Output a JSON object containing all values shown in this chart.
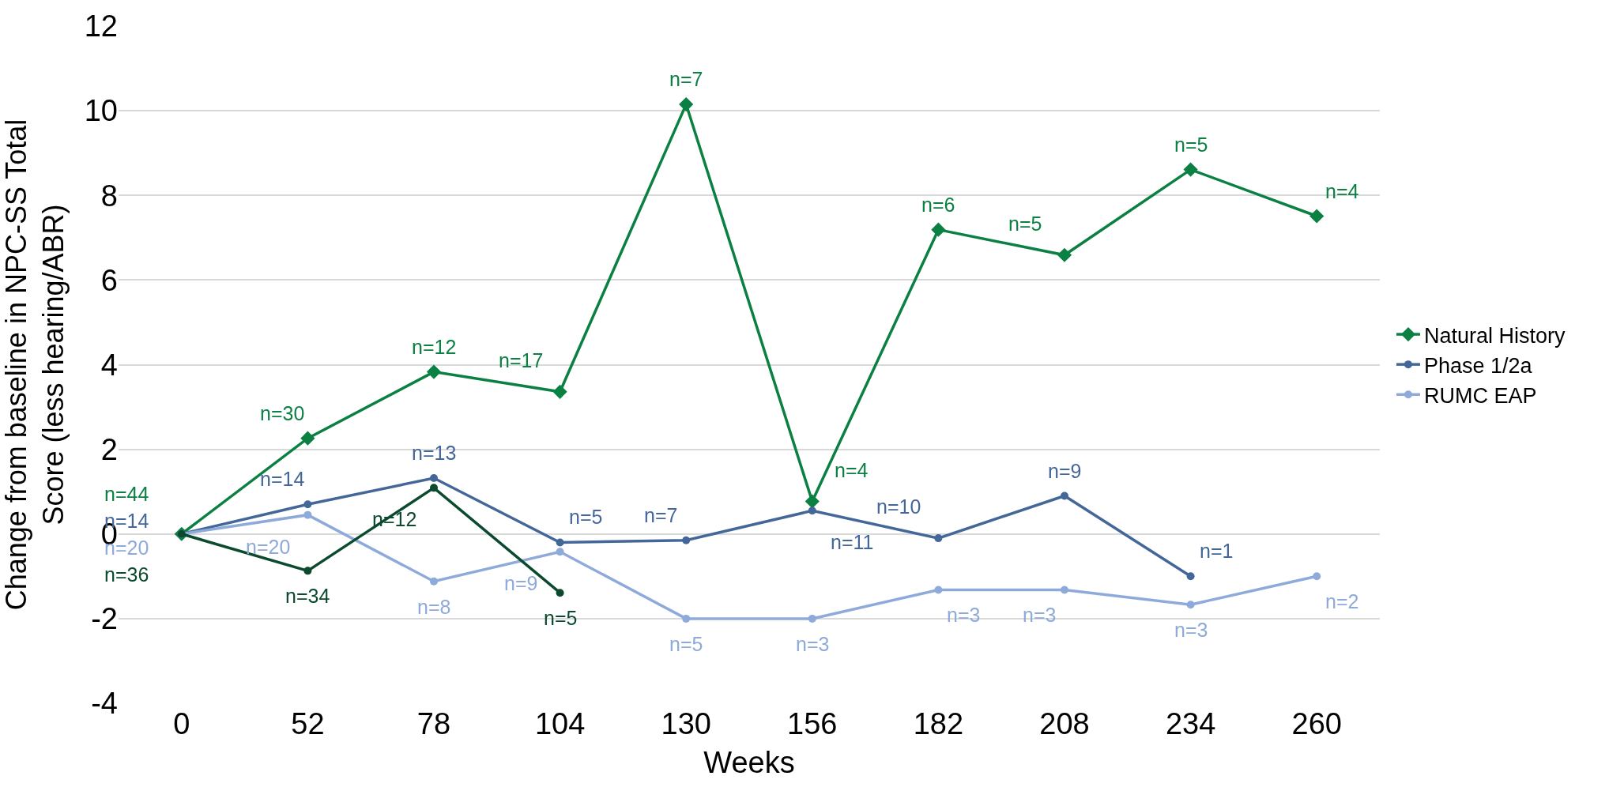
{
  "chart_data": {
    "type": "line",
    "xlabel": "Weeks",
    "ylabel": "Change from baseline in NPC-SS Total\nScore (less hearing/ABR)",
    "categories": [
      "0",
      "52",
      "78",
      "104",
      "130",
      "156",
      "182",
      "208",
      "234",
      "260"
    ],
    "ylim": [
      -4,
      12
    ],
    "yticks": [
      -4,
      -2,
      0,
      2,
      4,
      6,
      8,
      10,
      12
    ],
    "grid": "y",
    "legend": "right",
    "line_style": "solid",
    "series": [
      {
        "name": "Natural History",
        "color": "#0b8043",
        "marker": "diamond",
        "values": [
          0,
          2.26,
          3.83,
          3.36,
          10.15,
          0.77,
          7.19,
          6.59,
          8.61,
          7.51
        ]
      },
      {
        "name": "Phase 1/2a",
        "color": "#44679a",
        "marker": "circle",
        "values": [
          0,
          0.7,
          1.32,
          -0.2,
          -0.15,
          0.55,
          -0.1,
          0.9,
          -1.0,
          null
        ]
      },
      {
        "name": "RUMC EAP",
        "color": "#8eaadb",
        "marker": "circle",
        "values": [
          0,
          0.45,
          -1.12,
          -0.42,
          -2.0,
          -2.0,
          -1.32,
          -1.32,
          -1.67,
          -1.0
        ]
      },
      {
        "color": "#0b4a2e",
        "marker": "circle",
        "values": [
          0,
          -0.87,
          1.09,
          -1.39,
          null,
          null,
          null,
          null,
          null,
          null
        ]
      }
    ],
    "annotations": [
      {
        "text": "n=44",
        "x": "0",
        "y": 0
      },
      {
        "text": "n=14",
        "x": "0",
        "y": 0
      },
      {
        "text": "n=20",
        "x": "0",
        "y": 0
      },
      {
        "text": "n=36",
        "x": "0",
        "y": 0
      },
      {
        "text": "n=30",
        "x": "52",
        "y": 2.26
      },
      {
        "text": "n=14",
        "x": "52",
        "y": 0.7
      },
      {
        "text": "n=20",
        "x": "52",
        "y": 0.45
      },
      {
        "text": "n=34",
        "x": "52",
        "y": -0.87
      },
      {
        "text": "n=12",
        "x": "78",
        "y": 3.83
      },
      {
        "text": "n=13",
        "x": "78",
        "y": 1.32
      },
      {
        "text": "n=12",
        "x": "78",
        "y": 1.09
      },
      {
        "text": "n=8",
        "x": "78",
        "y": -1.12
      },
      {
        "text": "n=17",
        "x": "104",
        "y": 3.36
      },
      {
        "text": "n=5",
        "x": "104",
        "y": -0.2
      },
      {
        "text": "n=9",
        "x": "104",
        "y": -0.42
      },
      {
        "text": "n=5",
        "x": "104",
        "y": -1.39
      },
      {
        "text": "n=7",
        "x": "130",
        "y": 10.15
      },
      {
        "text": "n=7",
        "x": "130",
        "y": -0.15
      },
      {
        "text": "n=5",
        "x": "130",
        "y": -2.0
      },
      {
        "text": "n=4",
        "x": "156",
        "y": 0.77
      },
      {
        "text": "n=11",
        "x": "156",
        "y": 0.55
      },
      {
        "text": "n=3",
        "x": "156",
        "y": -2.0
      },
      {
        "text": "n=6",
        "x": "182",
        "y": 7.19
      },
      {
        "text": "n=10",
        "x": "182",
        "y": -0.1
      },
      {
        "text": "n=3",
        "x": "182",
        "y": -1.32
      },
      {
        "text": "n=5",
        "x": "208",
        "y": 6.59
      },
      {
        "text": "n=9",
        "x": "208",
        "y": 0.9
      },
      {
        "text": "n=3",
        "x": "208",
        "y": -1.32
      },
      {
        "text": "n=5",
        "x": "234",
        "y": 8.61
      },
      {
        "text": "n=1",
        "x": "234",
        "y": -1.0
      },
      {
        "text": "n=3",
        "x": "234",
        "y": -1.67
      },
      {
        "text": "n=4",
        "x": "260",
        "y": 7.51
      },
      {
        "text": "n=2",
        "x": "260",
        "y": -1.0
      }
    ]
  }
}
